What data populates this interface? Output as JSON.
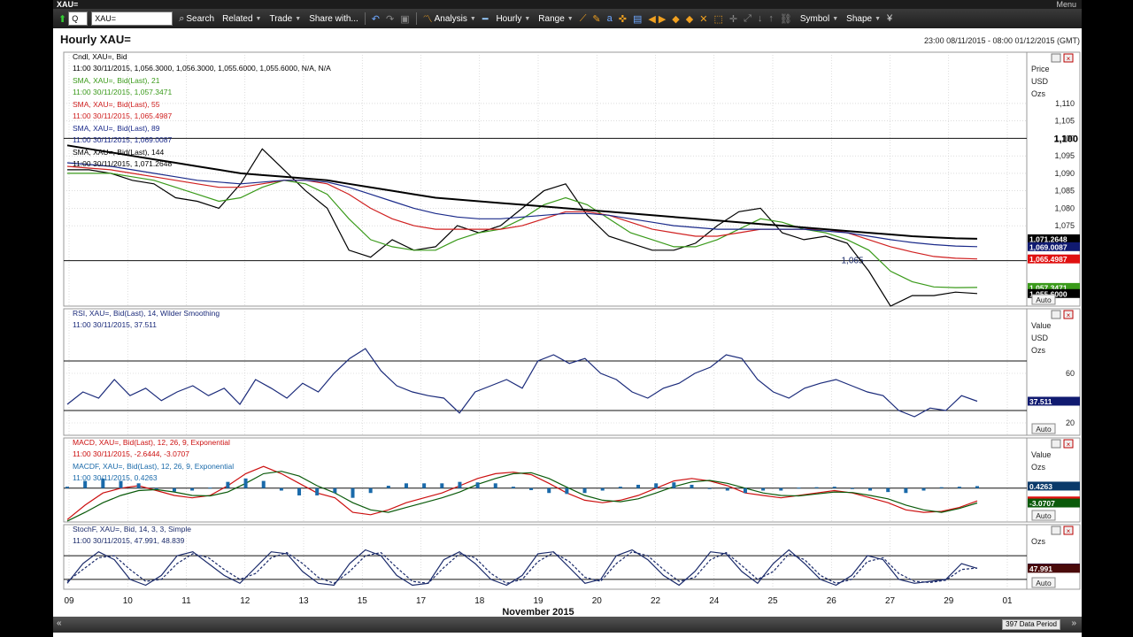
{
  "window": {
    "title": "XAU=",
    "menu_label": "Menu"
  },
  "toolbar": {
    "ric_label": "Q",
    "ric_value": "XAU=",
    "items": [
      "Search",
      "Related",
      "Trade",
      "Share with...",
      "Analysis",
      "Hourly",
      "Range",
      "Symbol",
      "Shape"
    ]
  },
  "chart_header": {
    "title": "Hourly XAU=",
    "range": "23:00 08/11/2015 - 08:00 01/12/2015 (GMT)"
  },
  "status": {
    "data_period": "397 Data Period"
  },
  "colors": {
    "price": "#000000",
    "sma21": "#3a9a1a",
    "sma55": "#d02020",
    "sma89": "#1a2a8a",
    "sma144": "#000000",
    "rsi": "#1a2a7a",
    "macd": "#cc1010",
    "macd_signal": "#0a5a0a",
    "macd_hist": "#1a6aaa",
    "stoch_k": "#1a2a6a",
    "stoch_d": "#1a2a6a"
  },
  "chart_data": {
    "type": "line",
    "x_axis": {
      "ticks": [
        "09",
        "10",
        "11",
        "12",
        "13",
        "15",
        "17",
        "18",
        "19",
        "20",
        "22",
        "24",
        "25",
        "26",
        "27",
        "29",
        "01"
      ],
      "label": "November 2015"
    },
    "panels": [
      {
        "name": "price",
        "legend": [
          {
            "label": "Cndl, XAU=, Bid",
            "value": "11:00 30/11/2015, 1,056.3000, 1,056.3000, 1,055.6000, 1,055.6000, N/A, N/A"
          },
          {
            "label": "SMA, XAU=, Bid(Last), 21",
            "value": "11:00 30/11/2015, 1,057.3471"
          },
          {
            "label": "SMA, XAU=, Bid(Last), 55",
            "value": "11:00 30/11/2015, 1,065.4987"
          },
          {
            "label": "SMA, XAU=, Bid(Last), 89",
            "value": "11:00 30/11/2015, 1,069.0087"
          },
          {
            "label": "SMA, XAU=, Bid(Last), 144",
            "value": "11:00 30/11/2015, 1,071.2648"
          }
        ],
        "axis_header": [
          "Price",
          "USD",
          "Ozs"
        ],
        "y_ticks": [
          "1,110",
          "1,105",
          "1,100",
          "1,095",
          "1,090",
          "1,085",
          "1,080",
          "1,075"
        ],
        "ylim": [
          1052,
          1112
        ],
        "hlines": [
          {
            "value": 1100,
            "label": "1,100"
          },
          {
            "value": 1065,
            "label": "1,065"
          }
        ],
        "last_values": [
          {
            "label": "1,071.2648",
            "value": 1071.2648,
            "bg": "#000000",
            "fg": "#ffffff"
          },
          {
            "label": "1,069.0087",
            "value": 1069.0087,
            "bg": "#101a70",
            "fg": "#ffffff"
          },
          {
            "label": "1,065.4987",
            "value": 1065.4987,
            "bg": "#e01010",
            "fg": "#ffffff"
          },
          {
            "label": "1,057.3471",
            "value": 1057.3471,
            "bg": "#3a9a1a",
            "fg": "#ffffff"
          },
          {
            "label": "1,055.6000",
            "value": 1055.6,
            "bg": "#000000",
            "fg": "#ffffff"
          }
        ],
        "series": [
          {
            "name": "Cndl, XAU=, Bid",
            "values": [
              1091,
              1091,
              1090,
              1088,
              1087,
              1083,
              1082,
              1080,
              1087,
              1097,
              1091,
              1085,
              1080,
              1068,
              1066,
              1071,
              1068,
              1069,
              1075,
              1073,
              1075,
              1080,
              1085,
              1087,
              1078,
              1072,
              1070,
              1068,
              1068,
              1070,
              1075,
              1079,
              1080,
              1073,
              1071,
              1072,
              1070,
              1062,
              1052,
              1055,
              1055,
              1056,
              1055.6
            ]
          },
          {
            "name": "SMA, XAU=, Bid(Last), 21",
            "values": [
              1090,
              1090,
              1090,
              1089,
              1088,
              1086,
              1084,
              1082,
              1083,
              1086,
              1088,
              1087,
              1084,
              1077,
              1071,
              1069,
              1068,
              1068,
              1071,
              1073,
              1074,
              1077,
              1081,
              1083,
              1081,
              1077,
              1073,
              1071,
              1069,
              1069,
              1071,
              1074,
              1077,
              1076,
              1074,
              1073,
              1071,
              1068,
              1062,
              1059,
              1057.5,
              1057.3,
              1057.3471
            ]
          },
          {
            "name": "SMA, XAU=, Bid(Last), 55",
            "values": [
              1092,
              1091.5,
              1091,
              1090,
              1089,
              1088,
              1087,
              1086,
              1086,
              1087,
              1088,
              1088,
              1087,
              1084,
              1080,
              1077,
              1075,
              1074,
              1074,
              1074,
              1074,
              1075,
              1077,
              1079,
              1079,
              1078,
              1076,
              1074,
              1073,
              1072,
              1072,
              1073,
              1074,
              1074,
              1074,
              1074,
              1073,
              1071,
              1069,
              1067.5,
              1066.2,
              1065.7,
              1065.4987
            ]
          },
          {
            "name": "SMA, XAU=, Bid(Last), 89",
            "values": [
              1093,
              1092.5,
              1092,
              1091,
              1090,
              1089,
              1088,
              1087.5,
              1087,
              1087.5,
              1088,
              1088,
              1087.5,
              1086,
              1084,
              1082,
              1080,
              1078.5,
              1077.5,
              1077,
              1077,
              1077.5,
              1078,
              1078.5,
              1078.5,
              1078,
              1077,
              1076,
              1075,
              1074.5,
              1074,
              1074,
              1074,
              1074,
              1074,
              1073.5,
              1073,
              1072,
              1071,
              1070.2,
              1069.6,
              1069.2,
              1069.0087
            ]
          },
          {
            "name": "SMA, XAU=, Bid(Last), 144",
            "values": [
              1098,
              1097,
              1096,
              1095,
              1094,
              1093,
              1092,
              1091,
              1090,
              1089.5,
              1089,
              1088.5,
              1088,
              1087,
              1086,
              1085,
              1084,
              1083,
              1082.5,
              1082,
              1081.5,
              1081,
              1080.5,
              1080,
              1079.5,
              1079,
              1078.5,
              1078,
              1077.5,
              1077,
              1076.5,
              1076,
              1075.5,
              1075,
              1074.5,
              1074,
              1073.5,
              1073,
              1072.5,
              1072,
              1071.7,
              1071.4,
              1071.2648
            ]
          }
        ]
      },
      {
        "name": "rsi",
        "legend": [
          {
            "label": "RSI, XAU=, Bid(Last), 14, Wilder Smoothing",
            "value": "11:00 30/11/2015, 37.511"
          }
        ],
        "axis_header": [
          "Value",
          "USD",
          "Ozs"
        ],
        "y_ticks": [
          "60",
          "20"
        ],
        "ylim": [
          10,
          95
        ],
        "hlines": [
          {
            "value": 70,
            "label": ""
          },
          {
            "value": 30,
            "label": ""
          }
        ],
        "last_values": [
          {
            "label": "37.511",
            "value": 37.511,
            "bg": "#101a70",
            "fg": "#ffffff"
          }
        ],
        "series": [
          {
            "name": "RSI, XAU=, Bid(Last), 14, Wilder Smoothing",
            "values": [
              35,
              45,
              40,
              55,
              42,
              48,
              38,
              45,
              50,
              42,
              48,
              35,
              55,
              48,
              40,
              52,
              45,
              60,
              72,
              80,
              62,
              50,
              45,
              42,
              40,
              28,
              45,
              50,
              55,
              48,
              70,
              75,
              68,
              72,
              60,
              55,
              45,
              40,
              48,
              52,
              60,
              65,
              75,
              72,
              55,
              45,
              40,
              48,
              52,
              55,
              50,
              45,
              42,
              30,
              25,
              32,
              30,
              42,
              37.511
            ]
          }
        ]
      },
      {
        "name": "macd",
        "legend": [
          {
            "label": "MACD, XAU=, Bid(Last), 12, 26, 9, Exponential",
            "value": "11:00 30/11/2015, -2.6444, -3.0707"
          },
          {
            "label": "MACDF, XAU=, Bid(Last), 12, 26, 9, Exponential",
            "value": "11:00 30/11/2015, 0.4263"
          }
        ],
        "axis_header": [
          "Value",
          "Ozs"
        ],
        "y_ticks": [],
        "ylim": [
          -7,
          6
        ],
        "hlines": [
          {
            "value": 0,
            "label": ""
          }
        ],
        "last_values": [
          {
            "label": "0.4263",
            "value": 0.4263,
            "bg": "#0a3a6a",
            "fg": "#ffffff"
          },
          {
            "label": "-2.6444",
            "value": -2.6444,
            "bg": "#e01010",
            "fg": "#ffffff"
          },
          {
            "label": "-3.0707",
            "value": -3.0707,
            "bg": "#0a5a0a",
            "fg": "#ffffff"
          }
        ],
        "series": [
          {
            "name": "MACD, XAU=, Bid(Last), 12, 26, 9, Exponential",
            "values": [
              -6.5,
              -3.5,
              -1,
              0,
              0.5,
              -0.5,
              -1.5,
              -2,
              -1.5,
              0.5,
              3,
              4.5,
              3,
              1,
              -1,
              -2,
              -5,
              -5.5,
              -4.5,
              -3,
              -2,
              -1,
              0.5,
              2,
              3,
              3.3,
              2.8,
              1,
              -1,
              -2.5,
              -3,
              -2.5,
              -1.5,
              0,
              1.5,
              2,
              1.5,
              0.5,
              -1,
              -1.5,
              -2,
              -1.5,
              -1,
              -0.5,
              -1,
              -2,
              -3,
              -4.5,
              -5,
              -4.8,
              -4,
              -2.6444
            ]
          },
          {
            "name": "MACD signal",
            "values": [
              -6.8,
              -5,
              -3,
              -1.5,
              -0.5,
              -0.3,
              -0.8,
              -1.5,
              -1.6,
              -0.8,
              1,
              3,
              3.5,
              2.5,
              0.5,
              -1,
              -3,
              -4.5,
              -5,
              -4,
              -3,
              -2,
              -0.8,
              0.8,
              2,
              3,
              3.2,
              2,
              0.2,
              -1.5,
              -2.5,
              -2.8,
              -2.2,
              -1,
              0.3,
              1.3,
              1.6,
              1,
              0,
              -1,
              -1.5,
              -1.6,
              -1.2,
              -0.8,
              -0.9,
              -1.5,
              -2.2,
              -3.5,
              -4.5,
              -5,
              -4.2,
              -3.0707
            ]
          },
          {
            "name": "MACDF, XAU=, Bid(Last), 12, 26, 9, Exponential",
            "values": [
              0.3,
              1.5,
              2,
              1.5,
              1,
              -0.2,
              -0.7,
              -0.5,
              0.1,
              1.3,
              2,
              1.5,
              -0.5,
              -1.5,
              -1.5,
              -1,
              -2,
              -1,
              0.5,
              1,
              1,
              1,
              1.3,
              1.2,
              1,
              0.3,
              -0.4,
              -1,
              -1.2,
              -1,
              -0.5,
              0.3,
              0.7,
              1,
              1.2,
              0.7,
              -0.1,
              -0.5,
              -1,
              -0.5,
              -0.5,
              0.1,
              0.2,
              0.3,
              -0.1,
              -0.5,
              -0.8,
              -1,
              -0.5,
              0.2,
              0.3,
              0.4263
            ]
          }
        ]
      },
      {
        "name": "stoch",
        "legend": [
          {
            "label": "StochF, XAU=, Bid, 14, 3, 3, Simple",
            "value": "11:00 30/11/2015, 47.991, 48.839"
          }
        ],
        "axis_header": [
          "Ozs"
        ],
        "y_ticks": [],
        "ylim": [
          -5,
          105
        ],
        "hlines": [
          {
            "value": 80,
            "label": ""
          },
          {
            "value": 20,
            "label": ""
          }
        ],
        "last_values": [
          {
            "label": "48.839",
            "value": 48.839,
            "bg": "#101a70",
            "fg": "#ffffff"
          },
          {
            "label": "47.991",
            "value": 47.991,
            "bg": "#4a0a0a",
            "fg": "#ffffff"
          }
        ],
        "series": [
          {
            "name": "StochF %K",
            "values": [
              10,
              60,
              90,
              70,
              20,
              5,
              30,
              80,
              90,
              60,
              30,
              10,
              50,
              90,
              85,
              40,
              10,
              5,
              60,
              95,
              80,
              30,
              5,
              10,
              70,
              90,
              60,
              20,
              5,
              30,
              85,
              90,
              50,
              10,
              20,
              80,
              95,
              70,
              30,
              5,
              40,
              90,
              85,
              40,
              10,
              60,
              95,
              60,
              20,
              5,
              30,
              80,
              70,
              20,
              10,
              15,
              20,
              60,
              47.991
            ]
          },
          {
            "name": "StochF %D",
            "values": [
              15,
              45,
              75,
              80,
              45,
              15,
              20,
              60,
              85,
              75,
              45,
              20,
              35,
              75,
              88,
              60,
              25,
              10,
              40,
              80,
              88,
              50,
              15,
              10,
              50,
              85,
              75,
              35,
              10,
              20,
              65,
              88,
              65,
              25,
              15,
              60,
              90,
              80,
              45,
              15,
              25,
              70,
              88,
              55,
              20,
              40,
              85,
              70,
              30,
              10,
              20,
              65,
              75,
              35,
              15,
              12,
              18,
              45,
              48.839
            ]
          }
        ]
      }
    ]
  }
}
